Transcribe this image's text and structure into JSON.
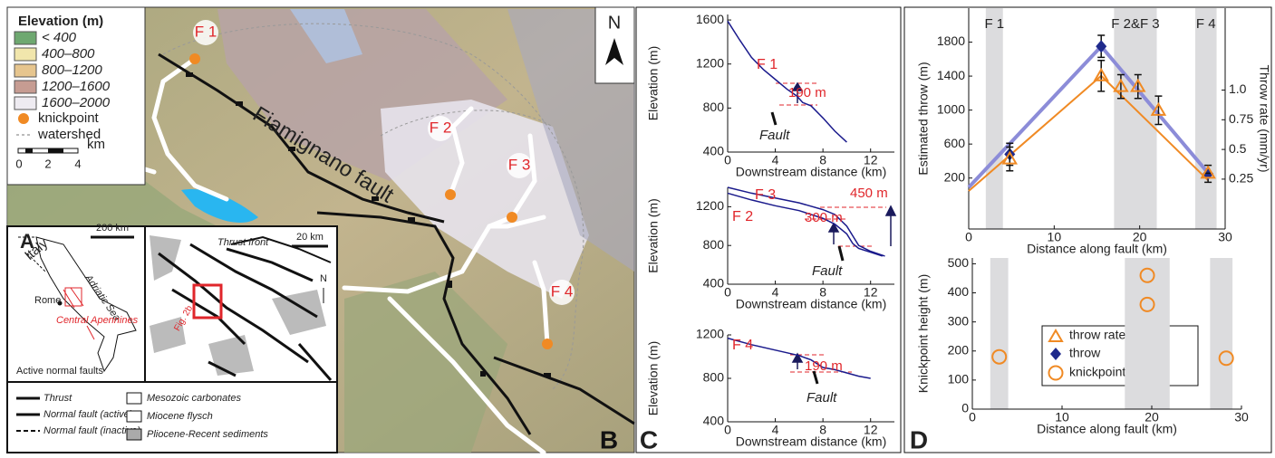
{
  "panels": {
    "a": "A",
    "b": "B",
    "c": "C",
    "d": "D"
  },
  "map": {
    "legend_title": "Elevation (m)",
    "legend_items": [
      "< 400",
      "400–800",
      "800–1200",
      "1200–1600",
      "1600–2000"
    ],
    "legend_colors": [
      "#6ea870",
      "#f1e6ac",
      "#e6c58e",
      "#c69c92",
      "#eeebf1"
    ],
    "knickpoint": "knickpoint",
    "watershed": "watershed",
    "scale_unit": "km",
    "scale_ticks": [
      0,
      2,
      4
    ],
    "knickpoint_labels": [
      "F 1",
      "F 2",
      "F 3",
      "F 4"
    ],
    "fault_name": "Fiamignano fault",
    "north": "N"
  },
  "inset": {
    "italy": "Italy",
    "sea": "Adriatic Sea",
    "rome": "Rome",
    "region": "Central Apennines",
    "active_faults": "Active normal faults",
    "scale_a": "200 km",
    "scale_b": "20 km",
    "thrust_front": "Thrust front",
    "north": "N",
    "figure_ref": "Fig. 2b",
    "legend": [
      "Thrust",
      "Normal fault (active)",
      "Normal fault (inactive)",
      "Mesozoic carbonates",
      "Miocene flysch",
      "Pliocene-Recent sediments"
    ]
  },
  "chart_data": [
    {
      "type": "line",
      "ylabel": "Elevation (m)",
      "xlabel": "Downstream distance (km)",
      "xlim": [
        0,
        14
      ],
      "ylim": [
        400,
        1650
      ],
      "xticks": [
        0,
        4,
        8,
        12
      ],
      "yticks": [
        400,
        800,
        1200,
        1600
      ],
      "series": [
        {
          "name": "F 1",
          "color": "#1a1a8c",
          "x": [
            0,
            1,
            2,
            3,
            4,
            5,
            5.8,
            6.3,
            7,
            8,
            9,
            10
          ],
          "values": [
            1590,
            1420,
            1260,
            1150,
            1060,
            970,
            910,
            850,
            820,
            710,
            590,
            490
          ]
        }
      ],
      "annotations": [
        "190 m",
        "Fault"
      ]
    },
    {
      "type": "line",
      "ylabel": "Elevation (m)",
      "xlabel": "Downstream distance (km)",
      "xlim": [
        0,
        14
      ],
      "ylim": [
        400,
        1400
      ],
      "xticks": [
        0,
        4,
        8,
        12
      ],
      "yticks": [
        400,
        800,
        1200
      ],
      "series": [
        {
          "name": "F 3",
          "color": "#1a1a8c",
          "x": [
            0,
            2,
            4,
            6,
            8,
            9,
            10,
            10.5,
            11,
            12,
            13.2
          ],
          "values": [
            1400,
            1340,
            1290,
            1240,
            1170,
            1120,
            1000,
            900,
            800,
            740,
            690
          ]
        },
        {
          "name": "F 2",
          "color": "#1a1a8c",
          "x": [
            0,
            2,
            4,
            6,
            8,
            9,
            10,
            10.5,
            11,
            12,
            13
          ],
          "values": [
            1340,
            1270,
            1210,
            1160,
            1080,
            1020,
            920,
            820,
            770,
            730,
            690
          ]
        }
      ],
      "annotations": [
        "450 m",
        "300 m",
        "Fault"
      ]
    },
    {
      "type": "line",
      "ylabel": "Elevation (m)",
      "xlabel": "Downstream distance (km)",
      "xlim": [
        0,
        14
      ],
      "ylim": [
        400,
        1200
      ],
      "xticks": [
        0,
        4,
        8,
        12
      ],
      "yticks": [
        400,
        800,
        1200
      ],
      "series": [
        {
          "name": "F 4",
          "color": "#1a1a8c",
          "x": [
            0,
            2,
            4,
            6,
            7,
            8,
            9,
            10,
            11,
            12
          ],
          "values": [
            1170,
            1110,
            1060,
            1010,
            970,
            900,
            880,
            850,
            820,
            800
          ]
        }
      ],
      "annotations": [
        "190 m",
        "Fault"
      ]
    },
    {
      "type": "scatter",
      "ylabel": "Estimated throw (m)",
      "y2label": "Throw rate (mm/yr)",
      "xlabel": "Distance along fault (km)",
      "xlim": [
        0,
        30
      ],
      "ylim": [
        -400,
        2200
      ],
      "y2lim": [
        -0.17,
        1.69
      ],
      "xticks": [
        0,
        10,
        20,
        30
      ],
      "yticks": [
        200,
        600,
        1000,
        1400,
        1800
      ],
      "y2ticks": [
        0.25,
        0.5,
        0.75,
        {
          "value": 1,
          "label": "1.0"
        }
      ],
      "bands": [
        [
          2,
          4
        ],
        [
          17,
          22
        ],
        [
          26.5,
          29
        ]
      ],
      "band_labels": [
        "F 1",
        "F 2&F 3",
        "F 4"
      ],
      "series": [
        {
          "name": "throw",
          "color": "#1f2a8c",
          "marker": "diamond",
          "x": [
            4.8,
            15.5,
            28
          ],
          "values": [
            480,
            1750,
            250
          ],
          "errors": [
            130,
            130,
            100
          ]
        },
        {
          "name": "throw rate",
          "color": "#f08a24",
          "marker": "triangle",
          "axis": "y2",
          "x": [
            4.8,
            15.5,
            17.8,
            19.8,
            22.2,
            28
          ],
          "values": [
            0.42,
            1.12,
            1.03,
            1.03,
            0.83,
            0.3
          ],
          "errors": [
            0.1,
            0.13,
            0.1,
            0.1,
            0.12,
            0
          ]
        },
        {
          "color": "#8c8cd8",
          "x": [
            0,
            15.5,
            28
          ],
          "values": [
            90,
            1750,
            260
          ]
        },
        {
          "color": "#f08a24",
          "axis": "y2",
          "x": [
            0,
            15.5,
            28
          ],
          "values": [
            0.15,
            1.12,
            0.24
          ]
        }
      ]
    },
    {
      "type": "scatter",
      "ylabel": "Knickpoint height (m)",
      "xlabel": "Distance along fault (km)",
      "xlim": [
        0,
        30
      ],
      "ylim": [
        0,
        520
      ],
      "xticks": [
        0,
        10,
        20,
        30
      ],
      "yticks": [
        0,
        100,
        200,
        300,
        400,
        500
      ],
      "bands": [
        [
          2,
          4
        ],
        [
          17,
          22
        ],
        [
          26.5,
          29
        ]
      ],
      "series": [
        {
          "name": "knickpoint height",
          "color": "#f08a24",
          "marker": "circle",
          "x": [
            3,
            19.5,
            19.5,
            28.3
          ],
          "values": [
            180,
            460,
            360,
            175
          ]
        }
      ]
    }
  ]
}
